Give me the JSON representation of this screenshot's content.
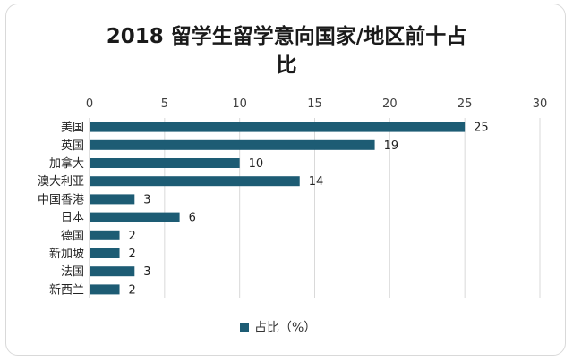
{
  "title_line1": "2018 留学生留学意向国家/地区前十占",
  "title_line2": "比",
  "colors": {
    "bar": "#1d5c74",
    "grid": "#d9d9d9",
    "axis": "#bfbfbf"
  },
  "chart_data": {
    "type": "bar",
    "orientation": "horizontal",
    "title": "2018 留学生留学意向国家/地区前十占比",
    "categories": [
      "美国",
      "英国",
      "加拿大",
      "澳大利亚",
      "中国香港",
      "日本",
      "德国",
      "新加坡",
      "法国",
      "新西兰"
    ],
    "series": [
      {
        "name": "占比（%）",
        "values": [
          25,
          19,
          10,
          14,
          3,
          6,
          2,
          2,
          3,
          2
        ]
      }
    ],
    "xlim": [
      0,
      30
    ],
    "xticks": [
      "0",
      "5",
      "10",
      "15",
      "20",
      "25",
      "30"
    ],
    "xaxis_position": "top",
    "grid": true,
    "legend": "bottom"
  }
}
